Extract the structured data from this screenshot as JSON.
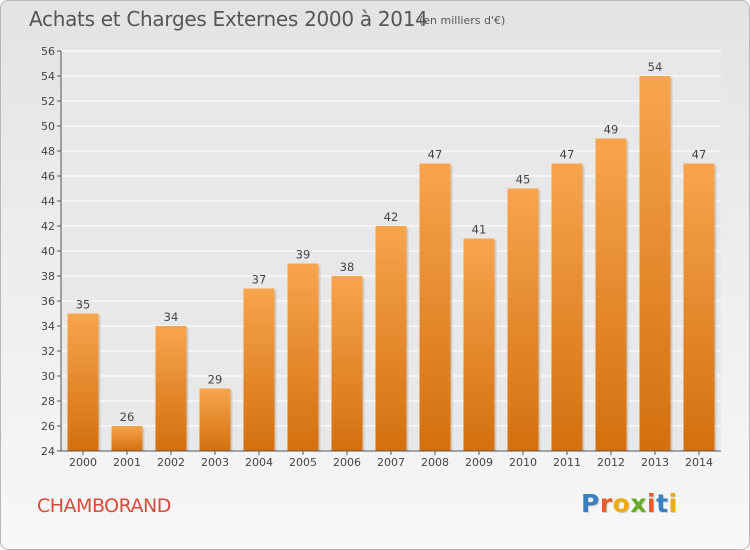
{
  "header": {
    "title": "Achats et Charges Externes 2000 à 2014",
    "subtitle": "(en milliers d'€)"
  },
  "footer": {
    "commune": "CHAMBORAND",
    "logo_text": "Proxiti"
  },
  "colors": {
    "bar_top": "#f7a54d",
    "bar_bottom": "#d3700f",
    "grid": "#ffffff",
    "axis": "#555555",
    "commune_text": "#d84a3a"
  },
  "logo_colors": [
    "#3a7fc4",
    "#e8592b",
    "#f2a90f",
    "#6aaa2a",
    "#e8592b",
    "#3a7fc4",
    "#f2a90f"
  ],
  "chart_data": {
    "type": "bar",
    "title": "Achats et Charges Externes 2000 à 2014",
    "subtitle": "(en milliers d'€)",
    "xlabel": "",
    "ylabel": "",
    "categories": [
      "2000",
      "2001",
      "2002",
      "2003",
      "2004",
      "2005",
      "2006",
      "2007",
      "2008",
      "2009",
      "2010",
      "2011",
      "2012",
      "2013",
      "2014"
    ],
    "values": [
      35,
      26,
      34,
      29,
      37,
      39,
      38,
      42,
      47,
      41,
      45,
      47,
      49,
      54,
      47
    ],
    "ylim": [
      24,
      56
    ],
    "yticks": [
      24,
      26,
      28,
      30,
      32,
      34,
      36,
      38,
      40,
      42,
      44,
      46,
      48,
      50,
      52,
      54,
      56
    ],
    "grid": true,
    "data_labels": true
  }
}
